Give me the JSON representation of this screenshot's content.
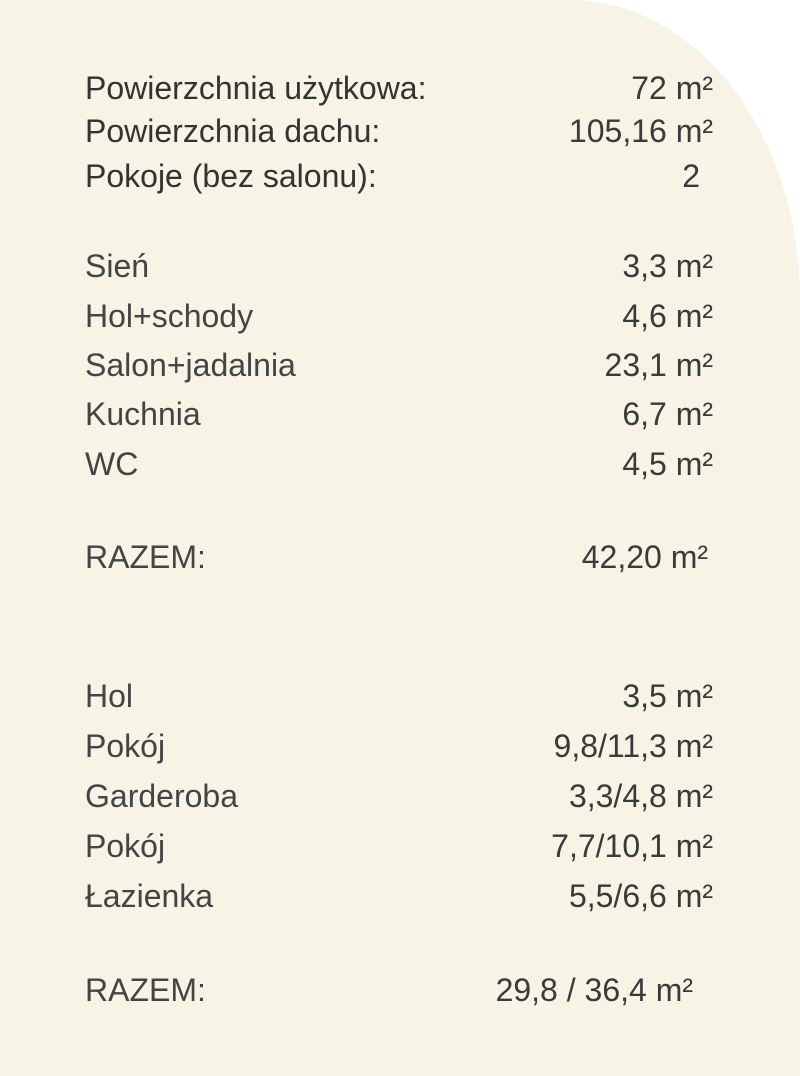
{
  "summary": [
    {
      "label": "Powierzchnia użytkowa:",
      "value": "72 m²"
    },
    {
      "label": "Powierzchnia dachu:",
      "value": "105,16 m²"
    },
    {
      "label": "Pokoje (bez salonu):",
      "value": "2"
    }
  ],
  "ground_floor": {
    "rooms": [
      {
        "label": "Sień",
        "value": "3,3 m²"
      },
      {
        "label": "Hol+schody",
        "value": "4,6 m²"
      },
      {
        "label": "Salon+jadalnia",
        "value": "23,1 m²"
      },
      {
        "label": "Kuchnia",
        "value": "6,7 m²"
      },
      {
        "label": "WC",
        "value": "4,5 m²"
      }
    ],
    "total_label": "RAZEM:",
    "total_value": "42,20 m²"
  },
  "upper_floor": {
    "rooms": [
      {
        "label": "Hol",
        "value": "3,5 m²"
      },
      {
        "label": "Pokój",
        "value": "9,8/11,3 m²"
      },
      {
        "label": "Garderoba",
        "value": "3,3/4,8 m²"
      },
      {
        "label": "Pokój",
        "value": "7,7/10,1 m²"
      },
      {
        "label": "Łazienka",
        "value": "5,5/6,6 m²"
      }
    ],
    "total_label": "RAZEM:",
    "total_value": "29,8 / 36,4 m²"
  }
}
